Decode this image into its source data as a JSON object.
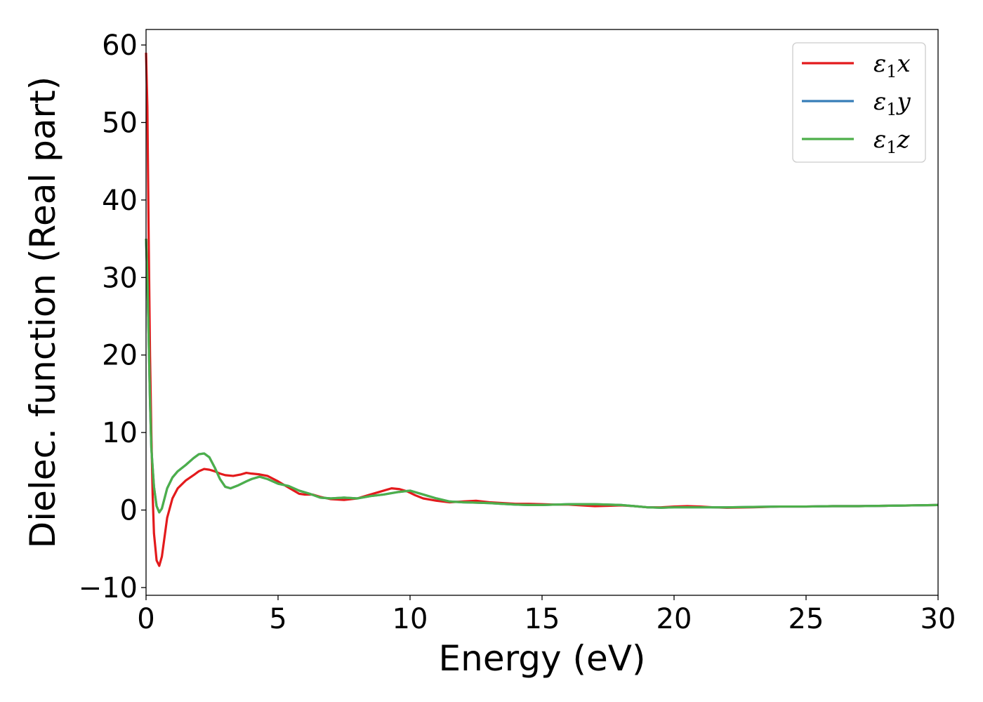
{
  "chart_data": {
    "type": "line",
    "xlabel": "Energy (eV)",
    "ylabel": "Dielec. function (Real part)",
    "xlim": [
      0,
      30
    ],
    "ylim": [
      -11,
      62
    ],
    "xticks": [
      0,
      5,
      10,
      15,
      20,
      25,
      30
    ],
    "xtick_labels": [
      "0",
      "5",
      "10",
      "15",
      "20",
      "25",
      "30"
    ],
    "yticks": [
      -10,
      0,
      10,
      20,
      30,
      40,
      50,
      60
    ],
    "ytick_labels": [
      "−10",
      "0",
      "10",
      "20",
      "30",
      "40",
      "50",
      "60"
    ],
    "grid": false,
    "legend_position": "top-right",
    "series": [
      {
        "name": "ε₁x",
        "legend_main": "ε",
        "legend_sub": "1",
        "legend_tail": "x",
        "color": "#e31a1c",
        "points": [
          [
            0.0,
            59
          ],
          [
            0.05,
            52
          ],
          [
            0.1,
            35
          ],
          [
            0.15,
            20
          ],
          [
            0.2,
            10
          ],
          [
            0.25,
            2
          ],
          [
            0.3,
            -3
          ],
          [
            0.4,
            -6.5
          ],
          [
            0.5,
            -7.2
          ],
          [
            0.6,
            -6
          ],
          [
            0.7,
            -3.5
          ],
          [
            0.8,
            -1
          ],
          [
            1.0,
            1.5
          ],
          [
            1.2,
            2.8
          ],
          [
            1.5,
            3.8
          ],
          [
            1.8,
            4.5
          ],
          [
            2.0,
            5.0
          ],
          [
            2.2,
            5.3
          ],
          [
            2.4,
            5.2
          ],
          [
            2.6,
            5.0
          ],
          [
            2.8,
            4.7
          ],
          [
            3.0,
            4.5
          ],
          [
            3.3,
            4.4
          ],
          [
            3.6,
            4.6
          ],
          [
            3.8,
            4.8
          ],
          [
            4.0,
            4.7
          ],
          [
            4.3,
            4.6
          ],
          [
            4.6,
            4.4
          ],
          [
            5.0,
            3.7
          ],
          [
            5.3,
            3.1
          ],
          [
            5.6,
            2.5
          ],
          [
            5.8,
            2.1
          ],
          [
            6.0,
            2.0
          ],
          [
            6.3,
            2.0
          ],
          [
            6.6,
            1.7
          ],
          [
            7.0,
            1.4
          ],
          [
            7.5,
            1.3
          ],
          [
            8.0,
            1.5
          ],
          [
            8.5,
            2.0
          ],
          [
            9.0,
            2.5
          ],
          [
            9.3,
            2.8
          ],
          [
            9.6,
            2.7
          ],
          [
            9.9,
            2.4
          ],
          [
            10.2,
            1.9
          ],
          [
            10.5,
            1.5
          ],
          [
            11.0,
            1.2
          ],
          [
            11.5,
            1.0
          ],
          [
            12.0,
            1.1
          ],
          [
            12.5,
            1.2
          ],
          [
            13.0,
            1.0
          ],
          [
            13.5,
            0.9
          ],
          [
            14.0,
            0.8
          ],
          [
            14.5,
            0.8
          ],
          [
            15.0,
            0.75
          ],
          [
            15.5,
            0.7
          ],
          [
            16.0,
            0.7
          ],
          [
            16.5,
            0.6
          ],
          [
            17.0,
            0.5
          ],
          [
            17.5,
            0.55
          ],
          [
            18.0,
            0.6
          ],
          [
            18.5,
            0.5
          ],
          [
            19.0,
            0.35
          ],
          [
            19.5,
            0.35
          ],
          [
            20.0,
            0.45
          ],
          [
            20.5,
            0.5
          ],
          [
            21.0,
            0.45
          ],
          [
            21.5,
            0.35
          ],
          [
            22.0,
            0.3
          ],
          [
            23.0,
            0.35
          ],
          [
            24.0,
            0.45
          ],
          [
            25.0,
            0.45
          ],
          [
            26.0,
            0.5
          ],
          [
            27.0,
            0.5
          ],
          [
            28.0,
            0.55
          ],
          [
            29.0,
            0.6
          ],
          [
            30.0,
            0.65
          ]
        ]
      },
      {
        "name": "ε₁y",
        "legend_main": "ε",
        "legend_sub": "1",
        "legend_tail": "y",
        "color": "#377eb8",
        "points": [
          [
            0.0,
            35
          ],
          [
            0.05,
            30
          ],
          [
            0.1,
            22
          ],
          [
            0.15,
            14
          ],
          [
            0.2,
            8
          ],
          [
            0.3,
            3
          ],
          [
            0.4,
            0.5
          ],
          [
            0.5,
            -0.3
          ],
          [
            0.6,
            0.2
          ],
          [
            0.7,
            1.5
          ],
          [
            0.8,
            2.8
          ],
          [
            1.0,
            4.2
          ],
          [
            1.2,
            5.0
          ],
          [
            1.5,
            5.8
          ],
          [
            1.8,
            6.7
          ],
          [
            2.0,
            7.2
          ],
          [
            2.2,
            7.3
          ],
          [
            2.4,
            6.8
          ],
          [
            2.6,
            5.5
          ],
          [
            2.8,
            4.0
          ],
          [
            3.0,
            3.0
          ],
          [
            3.2,
            2.8
          ],
          [
            3.5,
            3.2
          ],
          [
            3.8,
            3.7
          ],
          [
            4.0,
            4.0
          ],
          [
            4.3,
            4.3
          ],
          [
            4.6,
            4.0
          ],
          [
            5.0,
            3.4
          ],
          [
            5.4,
            3.1
          ],
          [
            5.8,
            2.5
          ],
          [
            6.2,
            2.1
          ],
          [
            6.6,
            1.6
          ],
          [
            7.0,
            1.5
          ],
          [
            7.5,
            1.6
          ],
          [
            8.0,
            1.5
          ],
          [
            8.5,
            1.8
          ],
          [
            9.0,
            2.0
          ],
          [
            9.5,
            2.3
          ],
          [
            10.0,
            2.5
          ],
          [
            10.5,
            2.0
          ],
          [
            11.0,
            1.5
          ],
          [
            11.5,
            1.1
          ],
          [
            12.0,
            1.0
          ],
          [
            12.5,
            0.95
          ],
          [
            13.0,
            0.9
          ],
          [
            13.5,
            0.8
          ],
          [
            14.0,
            0.7
          ],
          [
            14.5,
            0.65
          ],
          [
            15.0,
            0.65
          ],
          [
            15.5,
            0.7
          ],
          [
            16.0,
            0.75
          ],
          [
            17.0,
            0.75
          ],
          [
            18.0,
            0.65
          ],
          [
            18.5,
            0.5
          ],
          [
            19.0,
            0.35
          ],
          [
            19.5,
            0.3
          ],
          [
            20.0,
            0.35
          ],
          [
            21.0,
            0.35
          ],
          [
            22.0,
            0.35
          ],
          [
            23.0,
            0.4
          ],
          [
            24.0,
            0.45
          ],
          [
            25.0,
            0.45
          ],
          [
            26.0,
            0.5
          ],
          [
            27.0,
            0.5
          ],
          [
            28.0,
            0.55
          ],
          [
            29.0,
            0.6
          ],
          [
            30.0,
            0.65
          ]
        ]
      },
      {
        "name": "ε₁z",
        "legend_main": "ε",
        "legend_sub": "1",
        "legend_tail": "z",
        "color": "#4daf4a",
        "points": [
          [
            0.0,
            35
          ],
          [
            0.05,
            30
          ],
          [
            0.1,
            22
          ],
          [
            0.15,
            14
          ],
          [
            0.2,
            8
          ],
          [
            0.3,
            3
          ],
          [
            0.4,
            0.5
          ],
          [
            0.5,
            -0.3
          ],
          [
            0.6,
            0.2
          ],
          [
            0.7,
            1.5
          ],
          [
            0.8,
            2.8
          ],
          [
            1.0,
            4.2
          ],
          [
            1.2,
            5.0
          ],
          [
            1.5,
            5.8
          ],
          [
            1.8,
            6.7
          ],
          [
            2.0,
            7.2
          ],
          [
            2.2,
            7.3
          ],
          [
            2.4,
            6.8
          ],
          [
            2.6,
            5.5
          ],
          [
            2.8,
            4.0
          ],
          [
            3.0,
            3.0
          ],
          [
            3.2,
            2.8
          ],
          [
            3.5,
            3.2
          ],
          [
            3.8,
            3.7
          ],
          [
            4.0,
            4.0
          ],
          [
            4.3,
            4.3
          ],
          [
            4.6,
            4.0
          ],
          [
            5.0,
            3.4
          ],
          [
            5.4,
            3.1
          ],
          [
            5.8,
            2.5
          ],
          [
            6.2,
            2.1
          ],
          [
            6.6,
            1.6
          ],
          [
            7.0,
            1.5
          ],
          [
            7.5,
            1.6
          ],
          [
            8.0,
            1.5
          ],
          [
            8.5,
            1.8
          ],
          [
            9.0,
            2.0
          ],
          [
            9.5,
            2.3
          ],
          [
            10.0,
            2.5
          ],
          [
            10.5,
            2.0
          ],
          [
            11.0,
            1.5
          ],
          [
            11.5,
            1.1
          ],
          [
            12.0,
            1.0
          ],
          [
            12.5,
            0.95
          ],
          [
            13.0,
            0.9
          ],
          [
            13.5,
            0.8
          ],
          [
            14.0,
            0.7
          ],
          [
            14.5,
            0.65
          ],
          [
            15.0,
            0.65
          ],
          [
            15.5,
            0.7
          ],
          [
            16.0,
            0.75
          ],
          [
            17.0,
            0.75
          ],
          [
            18.0,
            0.65
          ],
          [
            18.5,
            0.5
          ],
          [
            19.0,
            0.35
          ],
          [
            19.5,
            0.3
          ],
          [
            20.0,
            0.35
          ],
          [
            21.0,
            0.35
          ],
          [
            22.0,
            0.35
          ],
          [
            23.0,
            0.4
          ],
          [
            24.0,
            0.45
          ],
          [
            25.0,
            0.45
          ],
          [
            26.0,
            0.5
          ],
          [
            27.0,
            0.5
          ],
          [
            28.0,
            0.55
          ],
          [
            29.0,
            0.6
          ],
          [
            30.0,
            0.65
          ]
        ]
      }
    ]
  }
}
